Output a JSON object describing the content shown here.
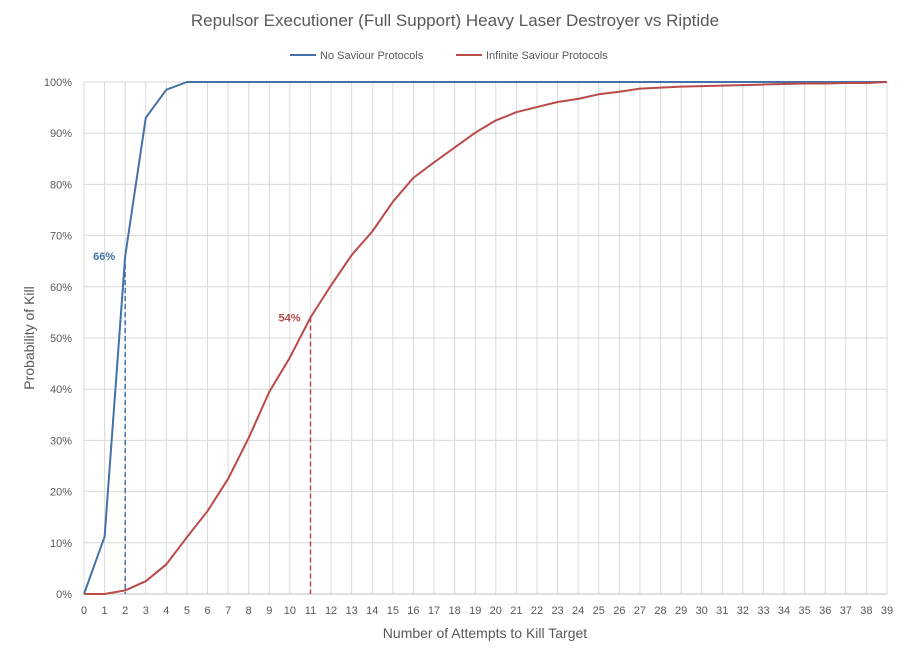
{
  "chart_data": {
    "type": "line",
    "title": "Repulsor Executioner (Full Support) Heavy Laser Destroyer vs Riptide",
    "xlabel": "Number of Attempts to Kill Target",
    "ylabel": "Probability of Kill",
    "xlim": [
      0,
      39
    ],
    "ylim": [
      0,
      100
    ],
    "y_tick_labels": [
      "0%",
      "10%",
      "20%",
      "30%",
      "40%",
      "50%",
      "60%",
      "70%",
      "80%",
      "90%",
      "100%"
    ],
    "x_tick_labels": [
      "0",
      "1",
      "2",
      "3",
      "4",
      "5",
      "6",
      "7",
      "8",
      "9",
      "10",
      "11",
      "12",
      "13",
      "14",
      "15",
      "16",
      "17",
      "18",
      "19",
      "20",
      "21",
      "22",
      "23",
      "24",
      "25",
      "26",
      "27",
      "28",
      "29",
      "30",
      "31",
      "32",
      "33",
      "34",
      "35",
      "36",
      "37",
      "38",
      "39"
    ],
    "grid": true,
    "legend_position": "top",
    "x": [
      0,
      1,
      2,
      3,
      4,
      5,
      6,
      7,
      8,
      9,
      10,
      11,
      12,
      13,
      14,
      15,
      16,
      17,
      18,
      19,
      20,
      21,
      22,
      23,
      24,
      25,
      26,
      27,
      28,
      29,
      30,
      31,
      32,
      33,
      34,
      35,
      36,
      37,
      38,
      39
    ],
    "series": [
      {
        "name": "No Saviour Protocols",
        "color": "#4472a8",
        "values": [
          0,
          11.2,
          66,
          93,
          98.5,
          100,
          100,
          100,
          100,
          100,
          100,
          100,
          100,
          100,
          100,
          100,
          100,
          100,
          100,
          100,
          100,
          100,
          100,
          100,
          100,
          100,
          100,
          100,
          100,
          100,
          100,
          100,
          100,
          100,
          100,
          100,
          100,
          100,
          100,
          100
        ]
      },
      {
        "name": "Infinite Saviour Protocols",
        "color": "#b94a48",
        "values": [
          0,
          0,
          0.7,
          2.5,
          5.8,
          11.1,
          16.2,
          22.5,
          30.5,
          39.5,
          46.2,
          54,
          60.3,
          66.2,
          70.8,
          76.6,
          81.3,
          84.3,
          87.2,
          90.1,
          92.5,
          94.1,
          95.1,
          96.1,
          96.7,
          97.6,
          98.1,
          98.7,
          98.9,
          99.1,
          99.2,
          99.3,
          99.4,
          99.5,
          99.6,
          99.7,
          99.7,
          99.8,
          99.8,
          100
        ]
      }
    ],
    "annotations": [
      {
        "label": "66%",
        "x": 2,
        "y": 66,
        "series": "No Saviour Protocols",
        "color": "#4472a8"
      },
      {
        "label": "54%",
        "x": 11,
        "y": 54,
        "series": "Infinite Saviour Protocols",
        "color": "#b94a48"
      }
    ]
  }
}
